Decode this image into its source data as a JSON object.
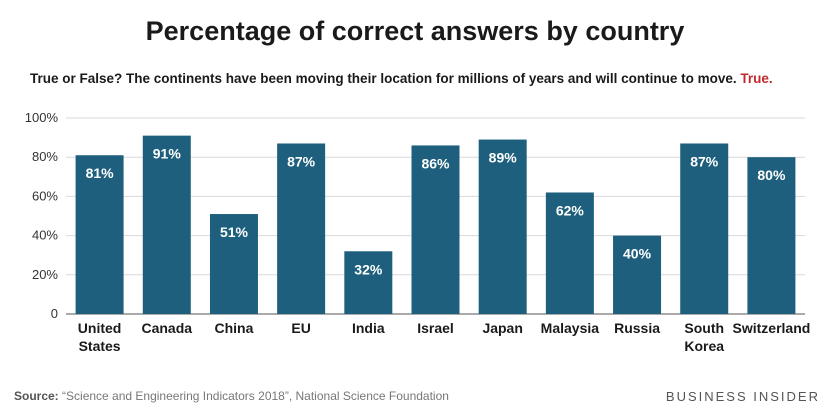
{
  "chart_data": {
    "type": "bar",
    "title": "Percentage of correct answers by country",
    "subtitle_question": "True or False? The continents have been moving their location for millions of years and will continue to move.",
    "subtitle_answer": "True.",
    "categories": [
      "United States",
      "Canada",
      "China",
      "EU",
      "India",
      "Israel",
      "Japan",
      "Malaysia",
      "Russia",
      "South Korea",
      "Switzerland"
    ],
    "category_lines": [
      [
        "United",
        "States"
      ],
      [
        "Canada"
      ],
      [
        "China"
      ],
      [
        "EU"
      ],
      [
        "India"
      ],
      [
        "Israel"
      ],
      [
        "Japan"
      ],
      [
        "Malaysia"
      ],
      [
        "Russia"
      ],
      [
        "South",
        "Korea"
      ],
      [
        "Switzerland"
      ]
    ],
    "values": [
      81,
      91,
      51,
      87,
      32,
      86,
      89,
      62,
      40,
      87,
      80
    ],
    "data_labels": [
      "81%",
      "91%",
      "51%",
      "87%",
      "32%",
      "86%",
      "89%",
      "62%",
      "40%",
      "87%",
      "80%"
    ],
    "ylim": [
      0,
      100
    ],
    "yticks": [
      0,
      20,
      40,
      60,
      80,
      100
    ],
    "ytick_labels": [
      "0",
      "20%",
      "40%",
      "60%",
      "80%",
      "100%"
    ],
    "grid": true,
    "bar_color": "#1e5f7d",
    "xlabel": "",
    "ylabel": ""
  },
  "footer": {
    "source_label": "Source:",
    "source_text": " “Science and Engineering Indicators 2018”, National Science Foundation",
    "brand": "BUSINESS INSIDER"
  },
  "colors": {
    "answer": "#c0282d",
    "grid": "#d9d9d9",
    "text": "#1a1a1a"
  }
}
